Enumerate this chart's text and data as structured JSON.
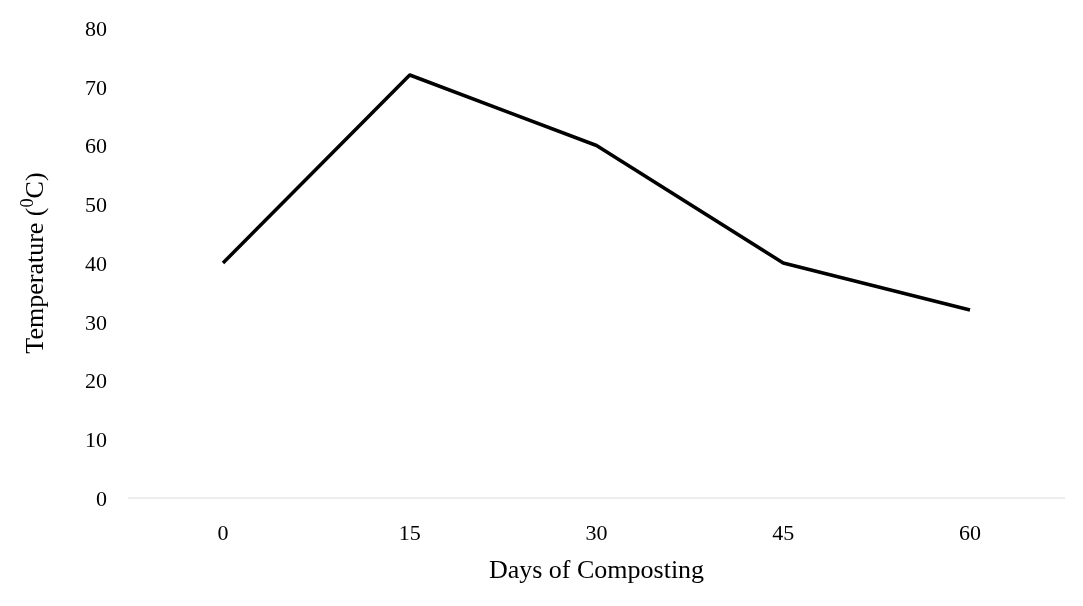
{
  "chart_data": {
    "type": "line",
    "xlabel": "Days of Composting",
    "ylabel": "Temperature ($^{0}$C)",
    "categories": [
      "0",
      "15",
      "30",
      "45",
      "60"
    ],
    "series": [
      {
        "color": "#000000",
        "values": [
          40,
          72,
          60,
          40,
          32
        ]
      }
    ],
    "ylim": [
      0,
      80
    ],
    "yticks": [
      0,
      10,
      20,
      30,
      40,
      50,
      60,
      70,
      80
    ],
    "marker": "none",
    "line_style": "solid"
  }
}
